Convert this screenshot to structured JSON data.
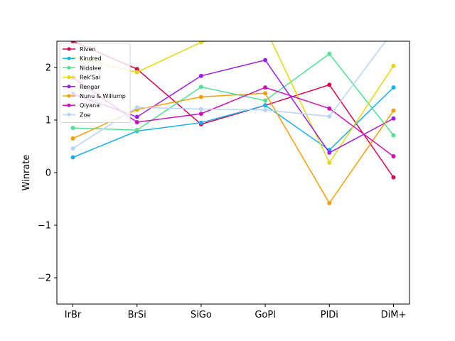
{
  "chart_data": {
    "type": "line",
    "title": "",
    "xlabel": "",
    "ylabel": "Winrate",
    "categories": [
      "IrBr",
      "BrSi",
      "SiGo",
      "GoPl",
      "PlDi",
      "DiM+"
    ],
    "ylim": [
      -2.5,
      2.5
    ],
    "yticks": [
      -2,
      -1,
      0,
      1,
      2
    ],
    "grid": false,
    "legend_position": "upper-left",
    "series": [
      {
        "name": "Riven",
        "color": "#d6064f",
        "values": [
          2.5,
          1.97,
          0.92,
          1.28,
          1.67,
          -0.09
        ]
      },
      {
        "name": "Kindred",
        "color": "#1ab0f0",
        "values": [
          0.29,
          0.79,
          0.95,
          1.28,
          0.43,
          1.62
        ]
      },
      {
        "name": "Nidalee",
        "color": "#50e191",
        "values": [
          0.85,
          0.81,
          1.63,
          1.37,
          2.26,
          0.71
        ]
      },
      {
        "name": "Rek'Sai",
        "color": "#e6d60b",
        "values": [
          2.2,
          1.91,
          2.48,
          2.75,
          0.19,
          2.03
        ]
      },
      {
        "name": "Rengar",
        "color": "#9a1ff0",
        "values": [
          1.5,
          1.06,
          1.84,
          2.14,
          0.38,
          1.03
        ]
      },
      {
        "name": "Nunu & Willump",
        "color": "#f59f08",
        "values": [
          0.65,
          1.2,
          1.44,
          1.51,
          -0.58,
          1.18
        ]
      },
      {
        "name": "Qiyana",
        "color": "#cc12b9",
        "values": [
          1.81,
          0.96,
          1.12,
          1.62,
          1.22,
          0.31
        ]
      },
      {
        "name": "Zoe",
        "color": "#b5d4f7",
        "values": [
          0.46,
          1.24,
          1.21,
          1.19,
          1.07,
          2.7
        ]
      }
    ]
  }
}
